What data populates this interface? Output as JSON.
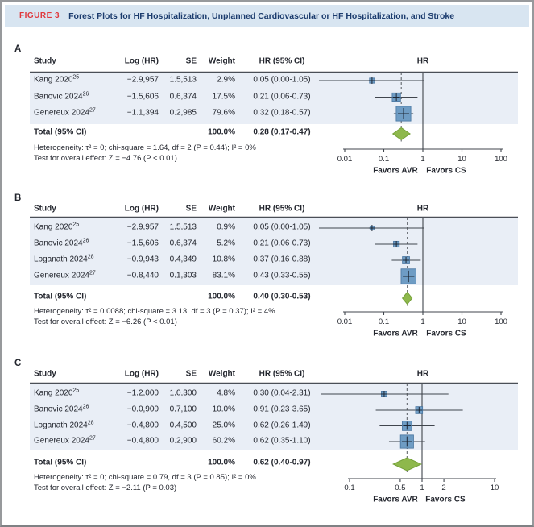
{
  "figure_header": {
    "label": "FIGURE 3",
    "title": "Forest Plots for HF Hospitalization, Unplanned Cardiovascular or HF Hospitalization, and Stroke"
  },
  "columns": {
    "study": "Study",
    "log_hr": "Log (HR)",
    "se": "SE",
    "weight": "Weight",
    "hr_ci": "HR (95% CI)",
    "plot": "HR"
  },
  "favors": {
    "left": "Favors AVR",
    "right": "Favors CS"
  },
  "colors": {
    "figure_label_red": "#e0383c",
    "title_navy": "#1c3c6e",
    "header_band_bg": "#d8e5f1",
    "row_band_bg": "#e9eef6",
    "marker_fill": "#6e9cc4",
    "marker_stroke": "#48749f",
    "marker_cross": "#1d2735",
    "diamond_fill": "#8eb84c",
    "diamond_stroke": "#75a03a",
    "line": "#40454d",
    "text": "#23262e"
  },
  "chart_data": [
    {
      "type": "forest",
      "panel": "A",
      "rows": [
        {
          "study": "Kang 2020",
          "ref": "25",
          "log_hr": "−2.9,957",
          "se": "1.5,513",
          "weight": "2.9%",
          "weight_pct": 2.9,
          "hr_ci": "0.05 (0.00-1.05)",
          "hr": 0.05,
          "lo": null,
          "hi": 1.05,
          "lo_offscale": true
        },
        {
          "study": "Banovic 2024",
          "ref": "26",
          "log_hr": "−1.5,606",
          "se": "0.6,374",
          "weight": "17.5%",
          "weight_pct": 17.5,
          "hr_ci": "0.21 (0.06-0.73)",
          "hr": 0.21,
          "lo": 0.06,
          "hi": 0.73,
          "lo_offscale": false
        },
        {
          "study": "Genereux 2024",
          "ref": "27",
          "log_hr": "−1.1,394",
          "se": "0.2,985",
          "weight": "79.6%",
          "weight_pct": 79.6,
          "hr_ci": "0.32 (0.18-0.57)",
          "hr": 0.32,
          "lo": 0.18,
          "hi": 0.57,
          "lo_offscale": false
        }
      ],
      "total": {
        "label": "Total (95% CI)",
        "weight": "100.0%",
        "hr_ci": "0.28 (0.17-0.47)",
        "hr": 0.28,
        "lo": 0.17,
        "hi": 0.47
      },
      "heterogeneity": "Heterogeneity: τ² = 0; chi-square = 1.64, df = 2 (P = 0.44); I² = 0%",
      "overall_test": "Test for overall effect: Z = −4.76 (P < 0.01)",
      "axis": {
        "scale": "log",
        "ticks": [
          {
            "label": "0.01",
            "v": 0.01
          },
          {
            "label": "0.1",
            "v": 0.1
          },
          {
            "label": "1",
            "v": 1
          },
          {
            "label": "10",
            "v": 10
          },
          {
            "label": "100",
            "v": 100
          }
        ]
      }
    },
    {
      "type": "forest",
      "panel": "B",
      "rows": [
        {
          "study": "Kang 2020",
          "ref": "25",
          "log_hr": "−2.9,957",
          "se": "1.5,513",
          "weight": "0.9%",
          "weight_pct": 0.9,
          "hr_ci": "0.05 (0.00-1.05)",
          "hr": 0.05,
          "lo": null,
          "hi": 1.05,
          "lo_offscale": true
        },
        {
          "study": "Banovic 2024",
          "ref": "26",
          "log_hr": "−1.5,606",
          "se": "0.6,374",
          "weight": "5.2%",
          "weight_pct": 5.2,
          "hr_ci": "0.21 (0.06-0.73)",
          "hr": 0.21,
          "lo": 0.06,
          "hi": 0.73,
          "lo_offscale": false
        },
        {
          "study": "Loganath 2024",
          "ref": "28",
          "log_hr": "−0.9,943",
          "se": "0.4,349",
          "weight": "10.8%",
          "weight_pct": 10.8,
          "hr_ci": "0.37 (0.16-0.88)",
          "hr": 0.37,
          "lo": 0.16,
          "hi": 0.88,
          "lo_offscale": false
        },
        {
          "study": "Genereux 2024",
          "ref": "27",
          "log_hr": "−0.8,440",
          "se": "0.1,303",
          "weight": "83.1%",
          "weight_pct": 83.1,
          "hr_ci": "0.43 (0.33-0.55)",
          "hr": 0.43,
          "lo": 0.33,
          "hi": 0.55,
          "lo_offscale": false
        }
      ],
      "total": {
        "label": "Total (95% CI)",
        "weight": "100.0%",
        "hr_ci": "0.40 (0.30-0.53)",
        "hr": 0.4,
        "lo": 0.3,
        "hi": 0.53
      },
      "heterogeneity": "Heterogeneity: τ² = 0.0088; chi-square = 3.13, df = 3 (P = 0.37); I² = 4%",
      "overall_test": "Test for overall effect: Z = −6.26 (P < 0.01)",
      "axis": {
        "scale": "log",
        "ticks": [
          {
            "label": "0.01",
            "v": 0.01
          },
          {
            "label": "0.1",
            "v": 0.1
          },
          {
            "label": "1",
            "v": 1
          },
          {
            "label": "10",
            "v": 10
          },
          {
            "label": "100",
            "v": 100
          }
        ]
      }
    },
    {
      "type": "forest",
      "panel": "C",
      "rows": [
        {
          "study": "Kang 2020",
          "ref": "25",
          "log_hr": "−1.2,000",
          "se": "1.0,300",
          "weight": "4.8%",
          "weight_pct": 4.8,
          "hr_ci": "0.30 (0.04-2.31)",
          "hr": 0.3,
          "lo": 0.04,
          "hi": 2.31,
          "lo_offscale": false
        },
        {
          "study": "Banovic 2024",
          "ref": "26",
          "log_hr": "−0.0,900",
          "se": "0.7,100",
          "weight": "10.0%",
          "weight_pct": 10.0,
          "hr_ci": "0.91 (0.23-3.65)",
          "hr": 0.91,
          "lo": 0.23,
          "hi": 3.65,
          "lo_offscale": false
        },
        {
          "study": "Loganath 2024",
          "ref": "28",
          "log_hr": "−0.4,800",
          "se": "0.4,500",
          "weight": "25.0%",
          "weight_pct": 25.0,
          "hr_ci": "0.62 (0.26-1.49)",
          "hr": 0.62,
          "lo": 0.26,
          "hi": 1.49,
          "lo_offscale": false
        },
        {
          "study": "Genereux 2024",
          "ref": "27",
          "log_hr": "−0.4,800",
          "se": "0.2,900",
          "weight": "60.2%",
          "weight_pct": 60.2,
          "hr_ci": "0.62 (0.35-1.10)",
          "hr": 0.62,
          "lo": 0.35,
          "hi": 1.1,
          "lo_offscale": false
        }
      ],
      "total": {
        "label": "Total (95% CI)",
        "weight": "100.0%",
        "hr_ci": "0.62 (0.40-0.97)",
        "hr": 0.62,
        "lo": 0.4,
        "hi": 0.97
      },
      "heterogeneity": "Heterogeneity: τ² = 0; chi-square = 0.79, df = 3 (P = 0.85); I² = 0%",
      "overall_test": "Test for overall effect: Z = −2.11 (P = 0.03)",
      "axis": {
        "scale": "log",
        "ticks": [
          {
            "label": "0.1",
            "v": 0.1
          },
          {
            "label": "0.5",
            "v": 0.5
          },
          {
            "label": "1",
            "v": 1
          },
          {
            "label": "2",
            "v": 2
          },
          {
            "label": "10",
            "v": 10
          }
        ]
      }
    }
  ]
}
